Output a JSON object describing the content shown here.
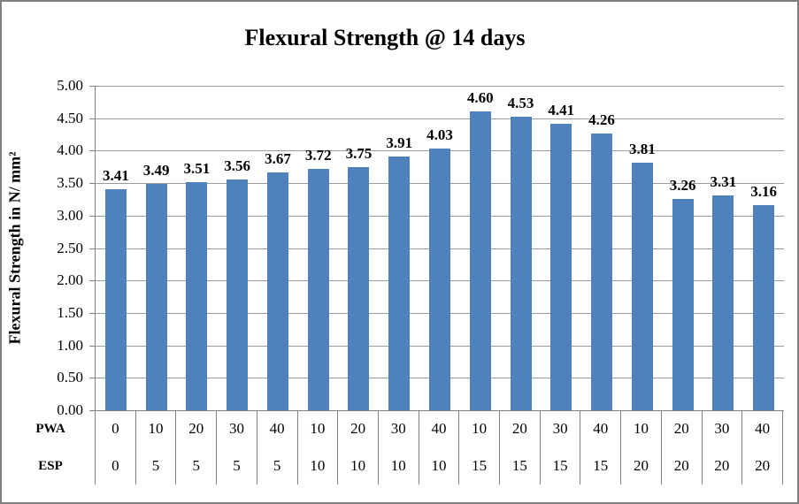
{
  "chart_data": {
    "type": "bar",
    "title": "Flexural Strength @ 14 days",
    "ylabel": "Flexural Strength in N/ mm²",
    "xlabel": "",
    "ylim": [
      0,
      5
    ],
    "ytick_step": 0.5,
    "yticks": [
      "0.00",
      "0.50",
      "1.00",
      "1.50",
      "2.00",
      "2.50",
      "3.00",
      "3.50",
      "4.00",
      "4.50",
      "5.00"
    ],
    "grid": true,
    "legend_position": "none",
    "bar_color": "#4F81BD",
    "gridline_color": "#9a9a9a",
    "axis_color": "#808080",
    "values": [
      3.41,
      3.49,
      3.51,
      3.56,
      3.67,
      3.72,
      3.75,
      3.91,
      4.03,
      4.6,
      4.53,
      4.41,
      4.26,
      3.81,
      3.26,
      3.31,
      3.16
    ],
    "value_labels": [
      "3.41",
      "3.49",
      "3.51",
      "3.56",
      "3.67",
      "3.72",
      "3.75",
      "3.91",
      "4.03",
      "4.60",
      "4.53",
      "4.41",
      "4.26",
      "3.81",
      "3.26",
      "3.31",
      "3.16"
    ],
    "category_rows": [
      {
        "label": "PWA",
        "values": [
          "0",
          "10",
          "20",
          "30",
          "40",
          "10",
          "20",
          "30",
          "40",
          "10",
          "20",
          "30",
          "40",
          "10",
          "20",
          "30",
          "40"
        ]
      },
      {
        "label": "ESP",
        "values": [
          "0",
          "5",
          "5",
          "5",
          "5",
          "10",
          "10",
          "10",
          "10",
          "15",
          "15",
          "15",
          "15",
          "20",
          "20",
          "20",
          "20"
        ]
      }
    ]
  }
}
